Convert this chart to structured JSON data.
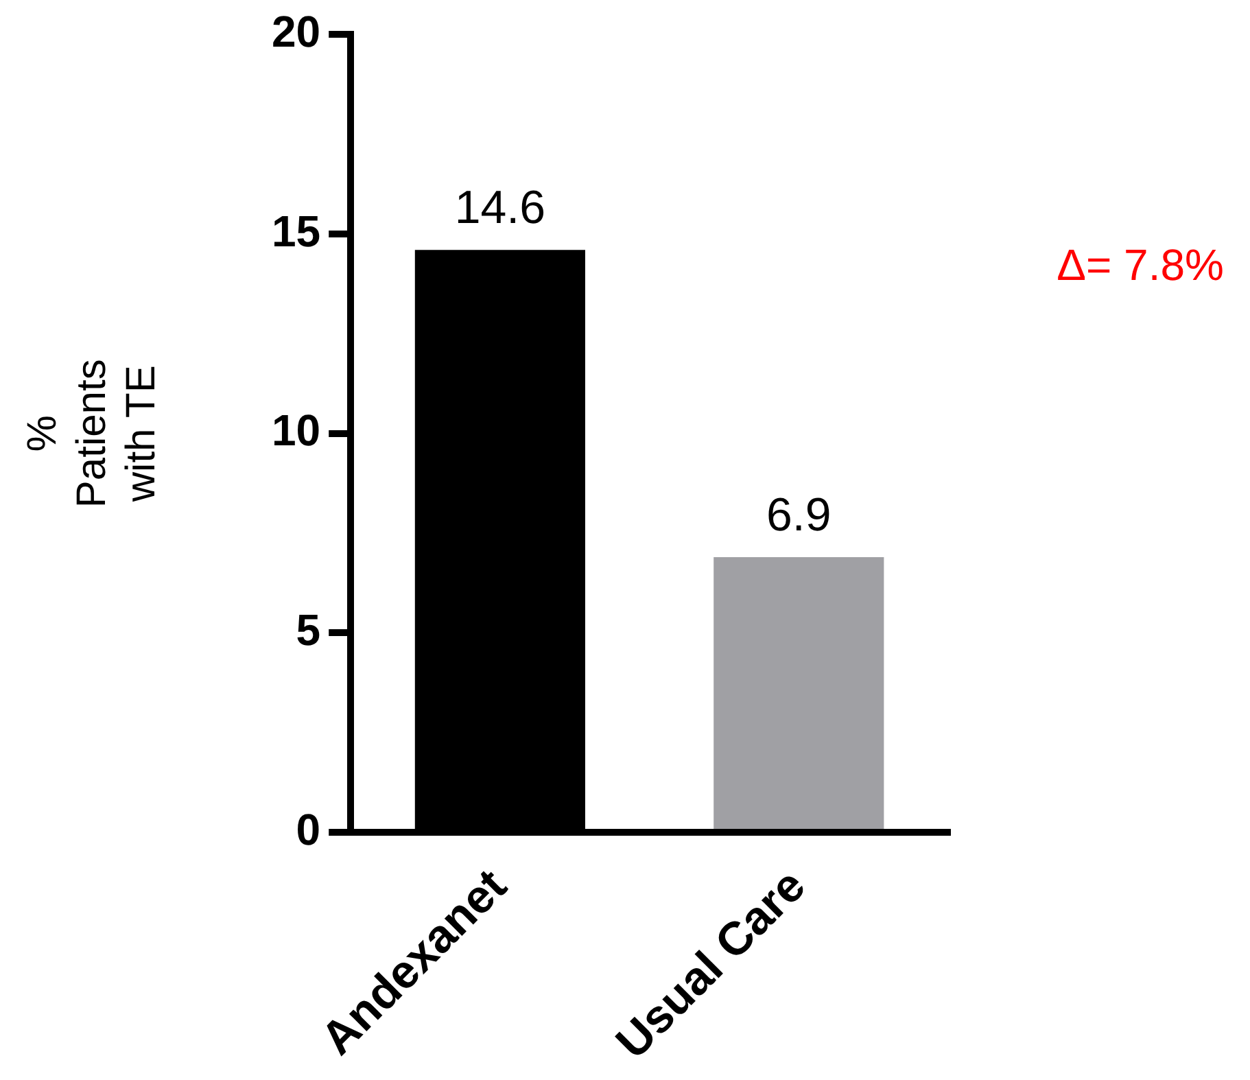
{
  "chart_data": {
    "type": "bar",
    "categories": [
      "Andexanet",
      "Usual Care"
    ],
    "values": [
      14.6,
      6.9
    ],
    "colors": [
      "#000000",
      "#a0a0a4"
    ],
    "ylabel": "%\nPatients\nwith TE",
    "ylim": [
      0,
      20
    ],
    "yticks": [
      0,
      5,
      10,
      15,
      20
    ],
    "grid": false,
    "legend": false,
    "data_labels": true,
    "annotations": [
      "Δ= 7.8%"
    ]
  }
}
